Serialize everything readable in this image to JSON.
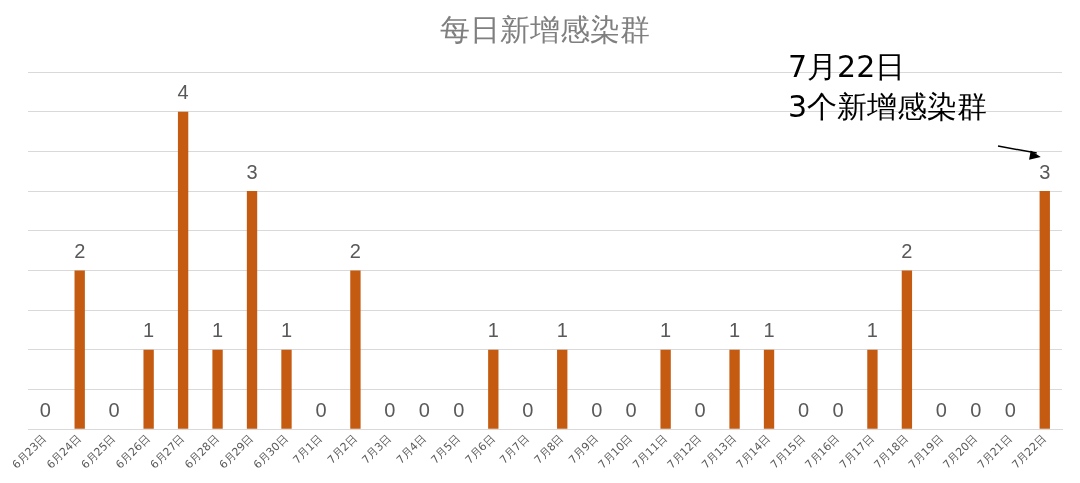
{
  "chart_data": {
    "type": "bar",
    "title": "每日新增感染群",
    "categories": [
      "6月23日",
      "6月24日",
      "6月25日",
      "6月26日",
      "6月27日",
      "6月28日",
      "6月29日",
      "6月30日",
      "7月1日",
      "7月2日",
      "7月3日",
      "7月4日",
      "7月5日",
      "7月6日",
      "7月7日",
      "7月8日",
      "7月9日",
      "7月10日",
      "7月11日",
      "7月12日",
      "7月13日",
      "7月14日",
      "7月15日",
      "7月16日",
      "7月17日",
      "7月18日",
      "7月19日",
      "7月20日",
      "7月21日",
      "7月22日"
    ],
    "values": [
      0,
      2,
      0,
      1,
      4,
      1,
      3,
      1,
      0,
      2,
      0,
      0,
      0,
      1,
      0,
      1,
      0,
      0,
      1,
      0,
      1,
      1,
      0,
      0,
      1,
      2,
      0,
      0,
      0,
      3
    ],
    "color": "#c55a11",
    "ylim": [
      0,
      4.5
    ],
    "yticks": [
      {
        "value": 0,
        "label": null
      },
      {
        "value": 0.5,
        "label": null
      },
      {
        "value": 1,
        "label": null
      },
      {
        "value": 1.5,
        "label": null
      },
      {
        "value": 2,
        "label": null
      },
      {
        "value": 2.5,
        "label": null
      },
      {
        "value": 3,
        "label": null
      },
      {
        "value": 3.5,
        "label": null
      },
      {
        "value": 4,
        "label": null
      },
      {
        "value": 4.5,
        "label": null
      }
    ],
    "tick_labels": "x",
    "grid": "y",
    "legend": false,
    "data_labels": true,
    "annotations": [
      {
        "text": "7月22日\n3个新增感染群",
        "x": "7月22日",
        "y": 3
      }
    ]
  }
}
